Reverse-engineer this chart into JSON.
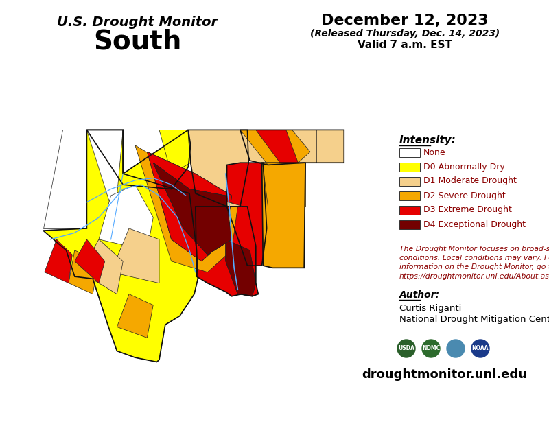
{
  "title_line1": "U.S. Drought Monitor",
  "title_line2": "South",
  "date_line1": "December 12, 2023",
  "date_line2": "(Released Thursday, Dec. 14, 2023)",
  "date_line3": "Valid 7 a.m. EST",
  "legend_title": "Intensity:",
  "legend_items": [
    {
      "label": "None",
      "color": "#ffffff"
    },
    {
      "label": "D0 Abnormally Dry",
      "color": "#ffff00"
    },
    {
      "label": "D1 Moderate Drought",
      "color": "#f5d08c"
    },
    {
      "label": "D2 Severe Drought",
      "color": "#f5a800"
    },
    {
      "label": "D3 Extreme Drought",
      "color": "#e60000"
    },
    {
      "label": "D4 Exceptional Drought",
      "color": "#730000"
    }
  ],
  "disclaimer_text": "The Drought Monitor focuses on broad-scale\nconditions. Local conditions may vary. For more\ninformation on the Drought Monitor, go to\nhttps://droughtmonitor.unl.edu/About.aspx",
  "author_label": "Author:",
  "author_name": "Curtis Riganti",
  "author_org": "National Drought Mitigation Center",
  "website": "droughtmonitor.unl.edu",
  "bg_color": "#ffffff",
  "text_color": "#000000",
  "legend_text_color": "#8b0000",
  "disclaimer_color": "#8b0000",
  "figsize": [
    8.0,
    6.18
  ],
  "dpi": 100
}
